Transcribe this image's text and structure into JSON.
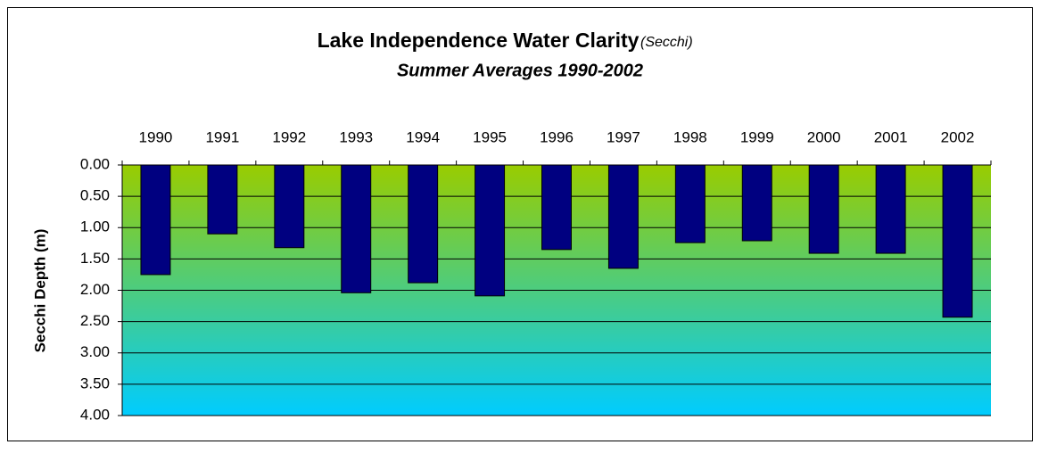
{
  "chart_data": {
    "type": "bar",
    "title": "Lake Independence Water Clarity",
    "title_note": "(Secchi)",
    "subtitle": "Summer Averages 1990-2002",
    "y_label": "Secchi Depth (m)",
    "categories": [
      "1990",
      "1991",
      "1992",
      "1993",
      "1994",
      "1995",
      "1996",
      "1997",
      "1998",
      "1999",
      "2000",
      "2001",
      "2002"
    ],
    "values": [
      1.75,
      1.1,
      1.32,
      2.04,
      1.88,
      2.09,
      1.35,
      1.65,
      1.24,
      1.21,
      1.41,
      1.41,
      2.43
    ],
    "color": "#000080",
    "background_gradient": [
      "#99cc00",
      "#00ccff"
    ],
    "ylim": [
      0,
      4
    ],
    "y_reversed": true,
    "yticks": [
      {
        "value": 0,
        "label": "0.00"
      },
      {
        "value": 0.5,
        "label": "0.50"
      },
      {
        "value": 1,
        "label": "1.00"
      },
      {
        "value": 1.5,
        "label": "1.50"
      },
      {
        "value": 2,
        "label": "2.00"
      },
      {
        "value": 2.5,
        "label": "2.50"
      },
      {
        "value": 3,
        "label": "3.00"
      },
      {
        "value": 3.5,
        "label": "3.50"
      },
      {
        "value": 4,
        "label": "4.00"
      }
    ],
    "grid": true
  }
}
